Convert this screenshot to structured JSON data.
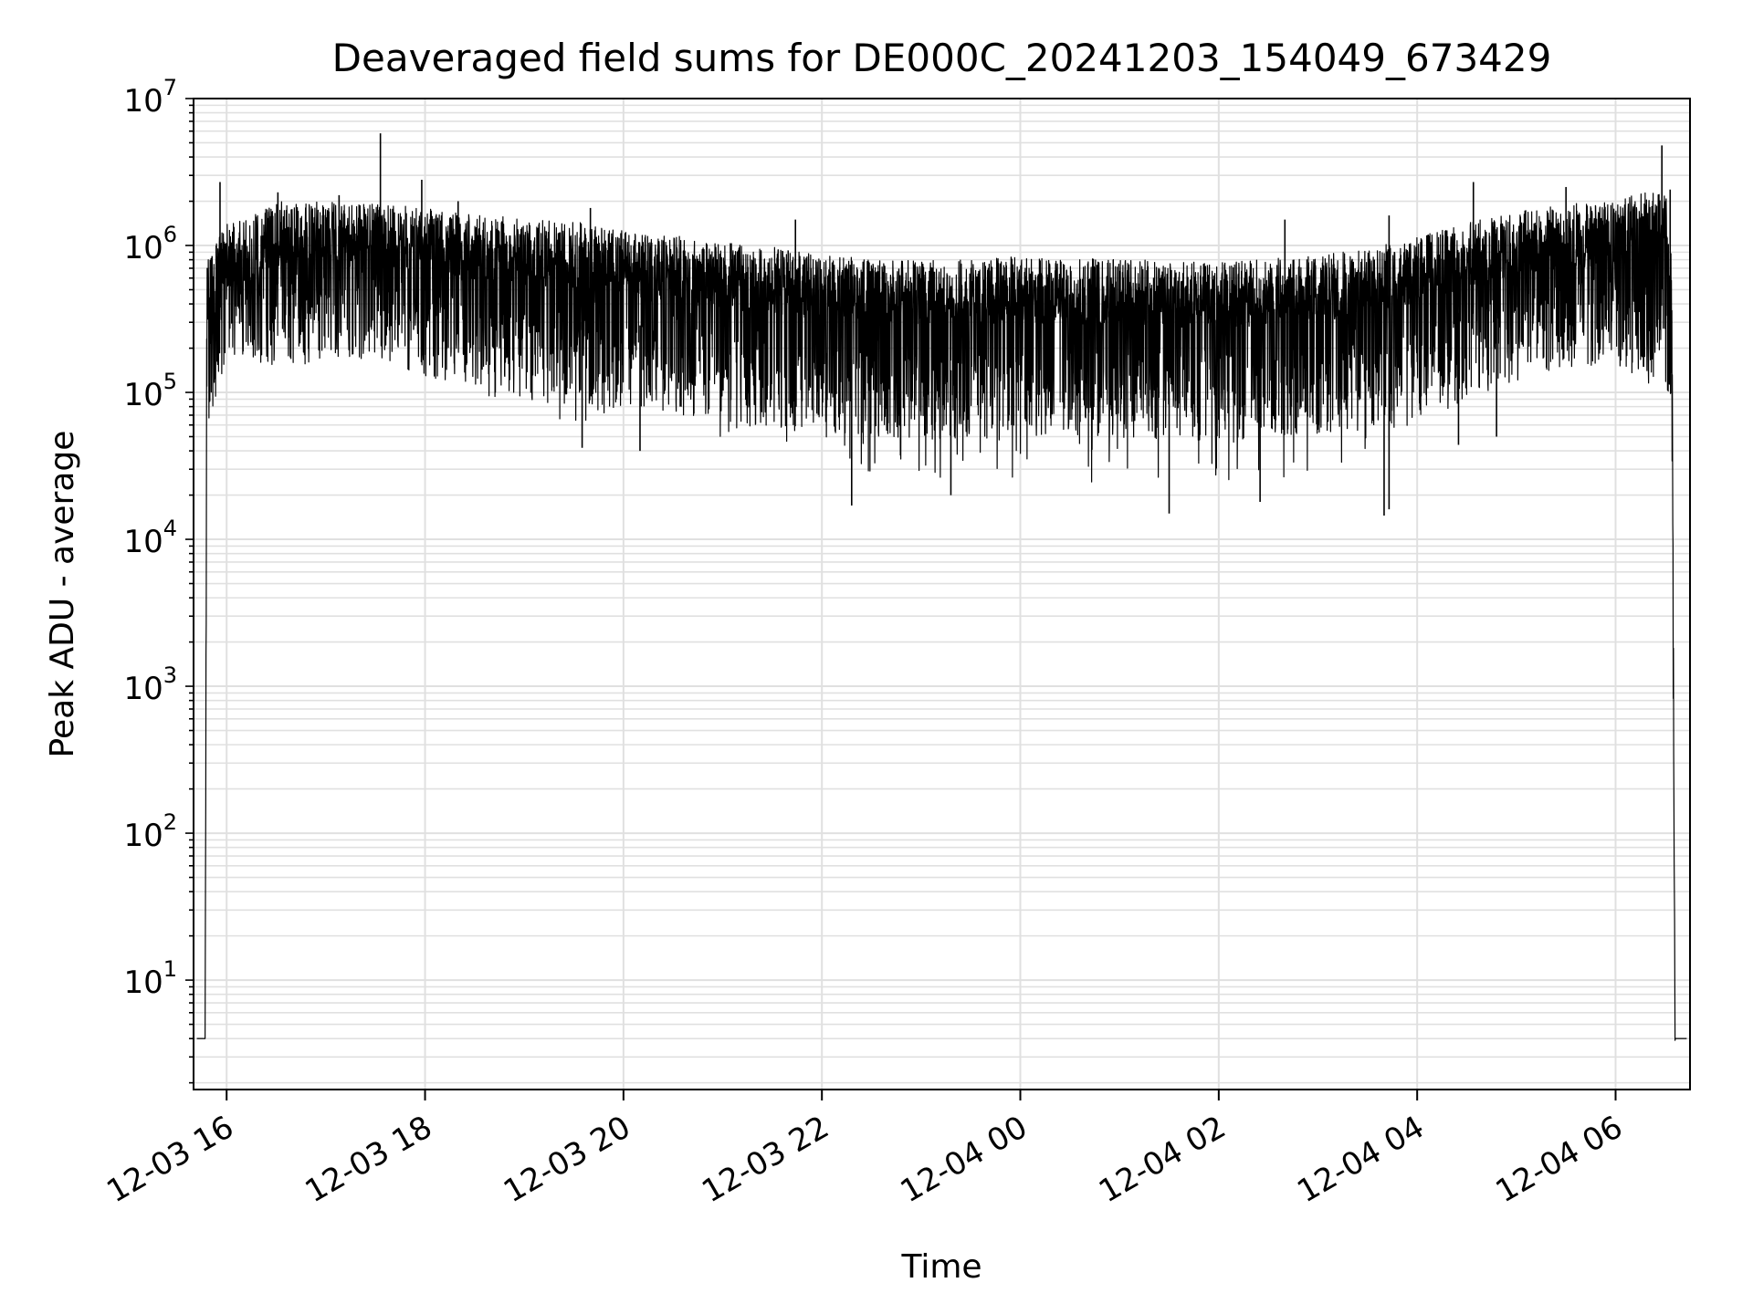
{
  "chart_data": {
    "type": "line",
    "title": "Deaveraged field sums for DE000C_20241203_154049_673429",
    "xlabel": "Time",
    "ylabel": "Peak ADU - average",
    "yscale": "log",
    "ylim": [
      1.8,
      10000000
    ],
    "xlim": [
      "2024-12-03 15:40",
      "2024-12-04 06:45"
    ],
    "grid": true,
    "line_color": "#000000",
    "grid_color": "#e0e0e0",
    "x_ticks": [
      {
        "label": "12-03 16",
        "time": "2024-12-03 16:00"
      },
      {
        "label": "12-03 18",
        "time": "2024-12-03 18:00"
      },
      {
        "label": "12-03 20",
        "time": "2024-12-03 20:00"
      },
      {
        "label": "12-03 22",
        "time": "2024-12-03 22:00"
      },
      {
        "label": "12-04 00",
        "time": "2024-12-04 00:00"
      },
      {
        "label": "12-04 02",
        "time": "2024-12-04 02:00"
      },
      {
        "label": "12-04 04",
        "time": "2024-12-04 04:00"
      },
      {
        "label": "12-04 06",
        "time": "2024-12-04 06:00"
      }
    ],
    "y_ticks": [
      {
        "mantissa": "10",
        "exponent": "1",
        "value": 10
      },
      {
        "mantissa": "10",
        "exponent": "2",
        "value": 100
      },
      {
        "mantissa": "10",
        "exponent": "3",
        "value": 1000
      },
      {
        "mantissa": "10",
        "exponent": "4",
        "value": 10000
      },
      {
        "mantissa": "10",
        "exponent": "5",
        "value": 100000
      },
      {
        "mantissa": "10",
        "exponent": "6",
        "value": 1000000
      },
      {
        "mantissa": "10",
        "exponent": "7",
        "value": 10000000
      }
    ],
    "series": [
      {
        "envelope": [
          {
            "x": "2024-12-03 15:42",
            "low": 4,
            "high": 4
          },
          {
            "x": "2024-12-03 15:47",
            "low": 4,
            "high": 4
          },
          {
            "x": "2024-12-03 15:48",
            "low": 50000,
            "high": 800000
          },
          {
            "x": "2024-12-03 16:00",
            "low": 180000,
            "high": 1500000
          },
          {
            "x": "2024-12-03 16:30",
            "low": 150000,
            "high": 2000000
          },
          {
            "x": "2024-12-03 17:00",
            "low": 160000,
            "high": 2100000
          },
          {
            "x": "2024-12-03 17:30",
            "low": 170000,
            "high": 2000000
          },
          {
            "x": "2024-12-03 18:00",
            "low": 130000,
            "high": 1900000
          },
          {
            "x": "2024-12-03 18:30",
            "low": 100000,
            "high": 1700000
          },
          {
            "x": "2024-12-03 19:00",
            "low": 80000,
            "high": 1600000
          },
          {
            "x": "2024-12-03 19:30",
            "low": 60000,
            "high": 1500000
          },
          {
            "x": "2024-12-03 20:00",
            "low": 70000,
            "high": 1300000
          },
          {
            "x": "2024-12-03 20:30",
            "low": 55000,
            "high": 1200000
          },
          {
            "x": "2024-12-03 21:00",
            "low": 50000,
            "high": 1100000
          },
          {
            "x": "2024-12-03 21:30",
            "low": 45000,
            "high": 1000000
          },
          {
            "x": "2024-12-03 22:00",
            "low": 40000,
            "high": 900000
          },
          {
            "x": "2024-12-03 22:30",
            "low": 28000,
            "high": 850000
          },
          {
            "x": "2024-12-03 23:00",
            "low": 25000,
            "high": 820000
          },
          {
            "x": "2024-12-03 23:30",
            "low": 23000,
            "high": 850000
          },
          {
            "x": "2024-12-04 00:00",
            "low": 25000,
            "high": 880000
          },
          {
            "x": "2024-12-04 00:30",
            "low": 25000,
            "high": 850000
          },
          {
            "x": "2024-12-04 01:00",
            "low": 24000,
            "high": 850000
          },
          {
            "x": "2024-12-04 01:30",
            "low": 22000,
            "high": 820000
          },
          {
            "x": "2024-12-04 02:00",
            "low": 23000,
            "high": 800000
          },
          {
            "x": "2024-12-04 02:30",
            "low": 25000,
            "high": 850000
          },
          {
            "x": "2024-12-04 03:00",
            "low": 28000,
            "high": 900000
          },
          {
            "x": "2024-12-04 03:30",
            "low": 35000,
            "high": 1000000
          },
          {
            "x": "2024-12-04 04:00",
            "low": 60000,
            "high": 1200000
          },
          {
            "x": "2024-12-04 04:30",
            "low": 90000,
            "high": 1500000
          },
          {
            "x": "2024-12-04 05:00",
            "low": 120000,
            "high": 1800000
          },
          {
            "x": "2024-12-04 05:30",
            "low": 150000,
            "high": 2000000
          },
          {
            "x": "2024-12-04 06:00",
            "low": 150000,
            "high": 2200000
          },
          {
            "x": "2024-12-04 06:30",
            "low": 100000,
            "high": 2500000
          },
          {
            "x": "2024-12-04 06:34",
            "low": 5000,
            "high": 1000000
          },
          {
            "x": "2024-12-04 06:36",
            "low": 4,
            "high": 4
          },
          {
            "x": "2024-12-04 06:43",
            "low": 4,
            "high": 4
          }
        ],
        "spikes": [
          {
            "x": "2024-12-03 15:56",
            "value": 2700000
          },
          {
            "x": "2024-12-03 16:31",
            "value": 2300000
          },
          {
            "x": "2024-12-03 17:08",
            "value": 2200000
          },
          {
            "x": "2024-12-03 17:33",
            "value": 5800000
          },
          {
            "x": "2024-12-03 17:58",
            "value": 2800000
          },
          {
            "x": "2024-12-03 18:20",
            "value": 2000000
          },
          {
            "x": "2024-12-03 19:40",
            "value": 1800000
          },
          {
            "x": "2024-12-03 21:44",
            "value": 1500000
          },
          {
            "x": "2024-12-04 02:40",
            "value": 1500000
          },
          {
            "x": "2024-12-04 03:43",
            "value": 1600000
          },
          {
            "x": "2024-12-04 04:34",
            "value": 2700000
          },
          {
            "x": "2024-12-04 05:30",
            "value": 2500000
          },
          {
            "x": "2024-12-04 06:28",
            "value": 4800000
          },
          {
            "x": "2024-12-04 06:33",
            "value": 2400000
          },
          {
            "x": "2024-12-03 22:18",
            "value": 17000
          },
          {
            "x": "2024-12-03 23:18",
            "value": 20000
          },
          {
            "x": "2024-12-04 01:30",
            "value": 15000
          },
          {
            "x": "2024-12-04 02:25",
            "value": 18000
          },
          {
            "x": "2024-12-04 03:40",
            "value": 14500
          },
          {
            "x": "2024-12-04 03:43",
            "value": 16000
          },
          {
            "x": "2024-12-03 20:10",
            "value": 40000
          },
          {
            "x": "2024-12-03 19:35",
            "value": 42000
          },
          {
            "x": "2024-12-04 04:25",
            "value": 44000
          },
          {
            "x": "2024-12-04 04:48",
            "value": 50000
          }
        ]
      }
    ]
  }
}
